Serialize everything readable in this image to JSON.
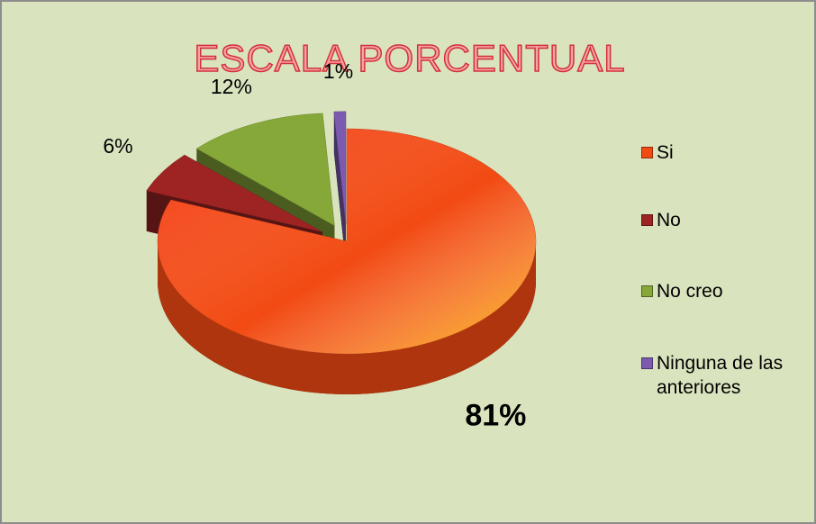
{
  "chart_data": {
    "type": "pie",
    "title": "ESCALA PORCENTUAL",
    "categories": [
      "Si",
      "No",
      "No creo",
      "Ninguna de las anteriores"
    ],
    "values": [
      81,
      6,
      12,
      1
    ],
    "value_labels": [
      "81%",
      "6%",
      "12%",
      "1%"
    ],
    "colors": [
      "#f24a12",
      "#9e2424",
      "#86a838",
      "#7b5ab0"
    ],
    "legend": "right"
  }
}
